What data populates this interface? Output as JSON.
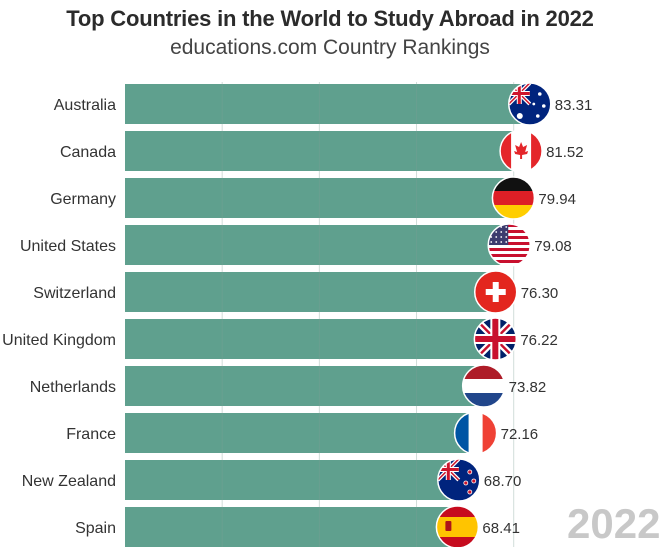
{
  "chart_data": {
    "type": "bar",
    "orientation": "horizontal",
    "title": "Top Countries in the World to Study Abroad in 2022",
    "subtitle": "educations.com Country Rankings",
    "categories": [
      "Australia",
      "Canada",
      "Germany",
      "United States",
      "Switzerland",
      "United Kingdom",
      "Netherlands",
      "France",
      "New Zealand",
      "Spain"
    ],
    "values": [
      83.31,
      81.52,
      79.94,
      79.08,
      76.3,
      76.22,
      73.82,
      72.16,
      68.7,
      68.41
    ],
    "value_labels": [
      "83.31",
      "81.52",
      "79.94",
      "79.08",
      "76.30",
      "76.22",
      "73.82",
      "72.16",
      "68.70",
      "68.41"
    ],
    "flags": [
      "australia-flag",
      "canada-flag",
      "germany-flag",
      "usa-flag",
      "switzerland-flag",
      "uk-flag",
      "netherlands-flag",
      "france-flag",
      "new-zealand-flag",
      "spain-flag"
    ],
    "xlim": [
      0,
      85
    ],
    "grid": true,
    "bar_color": "#5fa08e",
    "watermark": "2022"
  }
}
